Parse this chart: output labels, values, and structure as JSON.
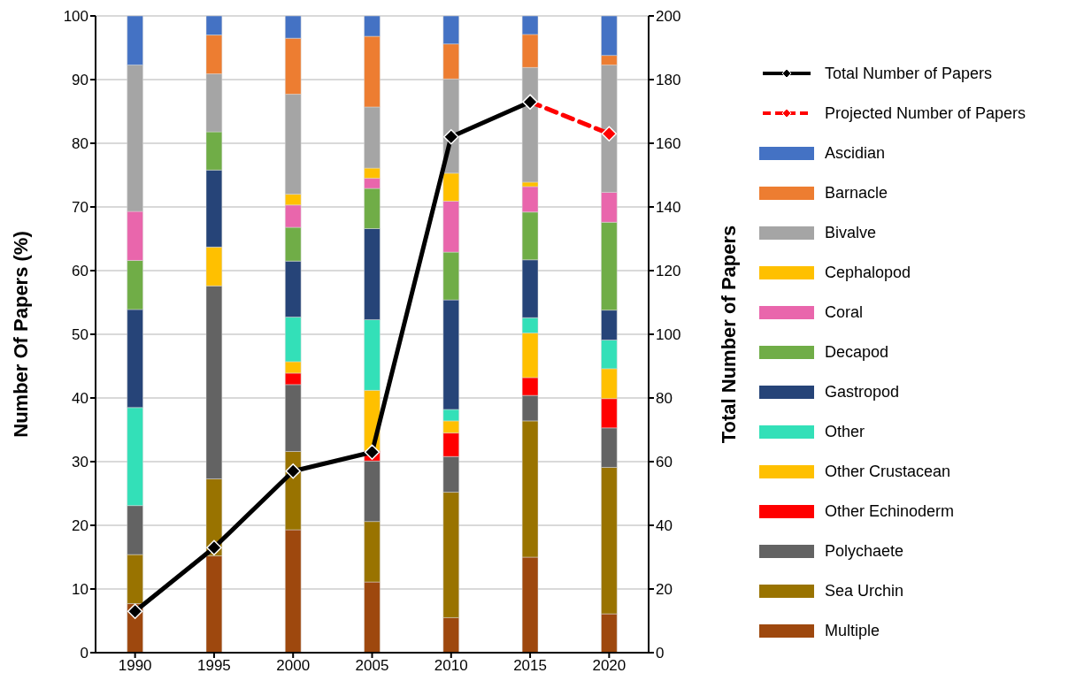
{
  "chart_data": {
    "type": "bar",
    "stacked": true,
    "categories": [
      "1990",
      "1995",
      "2000",
      "2005",
      "2010",
      "2015",
      "2020"
    ],
    "ylabel": "Number Of Papers (%)",
    "y2label": "Total Number of Papers",
    "ylim": [
      0,
      100
    ],
    "yticks": [
      0,
      10,
      20,
      30,
      40,
      50,
      60,
      70,
      80,
      90,
      100
    ],
    "y2lim": [
      0,
      200
    ],
    "y2ticks": [
      0,
      20,
      40,
      60,
      80,
      100,
      120,
      140,
      160,
      180,
      200
    ],
    "grid": "y",
    "legend": "right",
    "marker": "diamond",
    "series": [
      {
        "name": "Multiple",
        "color": "#9e480e",
        "values": [
          7.7,
          15.2,
          19.3,
          11.1,
          5.5,
          15.0,
          6.1
        ]
      },
      {
        "name": "Sea Urchin",
        "color": "#997300",
        "values": [
          7.7,
          12.1,
          12.3,
          9.5,
          19.7,
          21.4,
          23.0
        ]
      },
      {
        "name": "Polychaete",
        "color": "#636363",
        "values": [
          7.7,
          30.3,
          10.5,
          9.5,
          5.6,
          4.0,
          6.2
        ]
      },
      {
        "name": "Other Echinoderm",
        "color": "#ff0000",
        "values": [
          0,
          0,
          1.8,
          1.6,
          3.7,
          2.8,
          4.6
        ]
      },
      {
        "name": "Other Crustacean",
        "color": "#ffc000",
        "values": [
          0,
          6.1,
          1.8,
          9.5,
          1.9,
          7.0,
          4.7
        ]
      },
      {
        "name": "Other",
        "color": "#33e0b8",
        "values": [
          15.4,
          0,
          7.0,
          11.1,
          1.8,
          2.4,
          4.5
        ]
      },
      {
        "name": "Gastropod",
        "color": "#264478",
        "values": [
          15.4,
          12.1,
          8.8,
          14.3,
          17.2,
          9.1,
          4.7
        ]
      },
      {
        "name": "Decapod",
        "color": "#70ad47",
        "values": [
          7.7,
          6.0,
          5.3,
          6.3,
          7.5,
          7.5,
          13.8
        ]
      },
      {
        "name": "Coral",
        "color": "#e966ac",
        "values": [
          7.7,
          0,
          3.5,
          1.6,
          8.0,
          4.0,
          4.7
        ]
      },
      {
        "name": "Cephalopod",
        "color": "#ffc000",
        "values": [
          0,
          0,
          1.7,
          1.6,
          4.4,
          0.7,
          0
        ]
      },
      {
        "name": "Bivalve",
        "color": "#a5a5a5",
        "values": [
          23.0,
          9.1,
          15.7,
          9.6,
          14.8,
          18.0,
          20.0
        ]
      },
      {
        "name": "Barnacle",
        "color": "#ed7d31",
        "values": [
          0,
          6.1,
          8.8,
          11.1,
          5.5,
          5.2,
          1.5
        ]
      },
      {
        "name": "Ascidian",
        "color": "#4472c4",
        "values": [
          7.7,
          3.0,
          3.5,
          3.2,
          4.4,
          2.9,
          6.2
        ]
      },
      {
        "name": "Projected Number of Papers",
        "type": "line",
        "axis": "y2",
        "line_style": "dashed",
        "color": "#ff0000",
        "values": [
          null,
          null,
          null,
          null,
          null,
          173,
          163
        ]
      },
      {
        "name": "Total Number of Papers",
        "type": "line",
        "axis": "y2",
        "line_style": "solid",
        "color": "#000000",
        "values": [
          13,
          33,
          57,
          63,
          162,
          173,
          null
        ]
      }
    ]
  }
}
